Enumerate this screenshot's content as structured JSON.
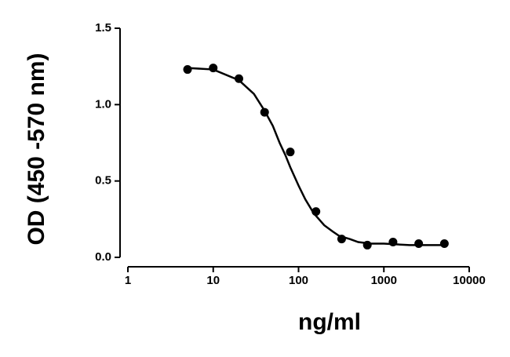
{
  "chart_data": {
    "type": "scatter",
    "xlabel": "ng/ml",
    "ylabel": "OD (450 -570 nm)",
    "xscale": "log",
    "xlim": [
      1,
      10000
    ],
    "xticks": [
      1,
      10,
      100,
      1000,
      10000
    ],
    "ylim": [
      0,
      1.5
    ],
    "yticks": [
      {
        "value": 0,
        "label": "0.0"
      },
      0.5,
      {
        "value": 1,
        "label": "1.0"
      },
      1.5
    ],
    "series": [
      {
        "type": "scatter",
        "color": "#000000",
        "x": [
          5,
          10,
          20,
          40,
          80,
          160,
          320,
          640,
          1280,
          2560,
          5120
        ],
        "values": [
          1.23,
          1.24,
          1.17,
          0.95,
          0.69,
          0.3,
          0.12,
          0.08,
          0.1,
          0.09,
          0.09
        ]
      },
      {
        "type": "line",
        "color": "#000000",
        "x": [
          5,
          10,
          20,
          30,
          40,
          50,
          60,
          70,
          80,
          100,
          120,
          150,
          200,
          250,
          300,
          400,
          500,
          700,
          1000,
          2000,
          5120
        ],
        "values": [
          1.24,
          1.23,
          1.16,
          1.07,
          0.96,
          0.86,
          0.75,
          0.67,
          0.59,
          0.47,
          0.38,
          0.29,
          0.21,
          0.17,
          0.14,
          0.12,
          0.1,
          0.09,
          0.09,
          0.08,
          0.08
        ]
      }
    ]
  }
}
